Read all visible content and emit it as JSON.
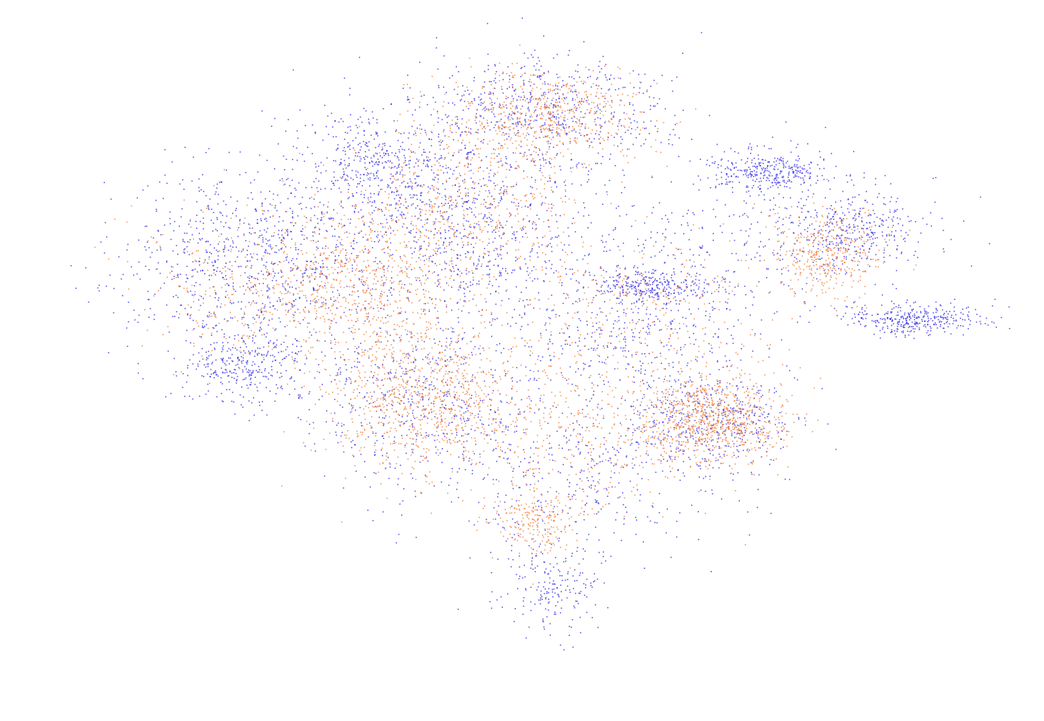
{
  "chart_data": {
    "type": "scatter",
    "title": "",
    "xlabel": "",
    "ylabel": "",
    "grid": false,
    "axes_visible": false,
    "legend": "none",
    "xlim": [
      0,
      100
    ],
    "ylim": [
      0,
      100
    ],
    "series": [
      {
        "color": "#1a0fe0",
        "approx_point_count": 60000,
        "clusters": [
          {
            "x": 52,
            "y": 88,
            "sx": 6.5,
            "sy": 4.2,
            "weight": 0.09
          },
          {
            "x": 22,
            "y": 66,
            "sx": 6.5,
            "sy": 7.0,
            "weight": 0.13
          },
          {
            "x": 35,
            "y": 80,
            "sx": 4.5,
            "sy": 4.5,
            "weight": 0.07
          },
          {
            "x": 44,
            "y": 70,
            "sx": 7.0,
            "sy": 7.0,
            "weight": 0.12
          },
          {
            "x": 75,
            "y": 79,
            "sx": 3.0,
            "sy": 1.6,
            "weight": 0.05
          },
          {
            "x": 84,
            "y": 70,
            "sx": 3.5,
            "sy": 2.8,
            "weight": 0.05
          },
          {
            "x": 90,
            "y": 57,
            "sx": 3.5,
            "sy": 1.2,
            "weight": 0.05
          },
          {
            "x": 63,
            "y": 62,
            "sx": 3.2,
            "sy": 1.2,
            "weight": 0.04
          },
          {
            "x": 21,
            "y": 50,
            "sx": 3.5,
            "sy": 3.0,
            "weight": 0.05
          },
          {
            "x": 39,
            "y": 45,
            "sx": 6.0,
            "sy": 6.0,
            "weight": 0.08
          },
          {
            "x": 69,
            "y": 42,
            "sx": 4.5,
            "sy": 3.8,
            "weight": 0.07
          },
          {
            "x": 55,
            "y": 34,
            "sx": 8.0,
            "sy": 6.0,
            "weight": 0.06
          },
          {
            "x": 53,
            "y": 17,
            "sx": 3.0,
            "sy": 3.5,
            "weight": 0.03
          },
          {
            "x": 60,
            "y": 55,
            "sx": 7.0,
            "sy": 5.0,
            "weight": 0.06
          },
          {
            "x": 70,
            "y": 68,
            "sx": 9.0,
            "sy": 6.0,
            "weight": 0.05
          }
        ]
      },
      {
        "color": "#ee6a1a",
        "approx_point_count": 45000,
        "clusters": [
          {
            "x": 52,
            "y": 87,
            "sx": 5.0,
            "sy": 3.5,
            "weight": 0.11
          },
          {
            "x": 39,
            "y": 46,
            "sx": 5.0,
            "sy": 5.5,
            "weight": 0.16
          },
          {
            "x": 69,
            "y": 42,
            "sx": 4.0,
            "sy": 3.2,
            "weight": 0.15
          },
          {
            "x": 33,
            "y": 63,
            "sx": 5.0,
            "sy": 5.0,
            "weight": 0.1
          },
          {
            "x": 44,
            "y": 73,
            "sx": 6.0,
            "sy": 6.0,
            "weight": 0.1
          },
          {
            "x": 81,
            "y": 67,
            "sx": 3.0,
            "sy": 3.5,
            "weight": 0.07
          },
          {
            "x": 23,
            "y": 62,
            "sx": 6.0,
            "sy": 6.0,
            "weight": 0.07
          },
          {
            "x": 51,
            "y": 27,
            "sx": 2.2,
            "sy": 2.5,
            "weight": 0.04
          },
          {
            "x": 55,
            "y": 40,
            "sx": 8.0,
            "sy": 7.0,
            "weight": 0.08
          },
          {
            "x": 62,
            "y": 58,
            "sx": 7.0,
            "sy": 6.0,
            "weight": 0.06
          }
        ]
      }
    ]
  }
}
